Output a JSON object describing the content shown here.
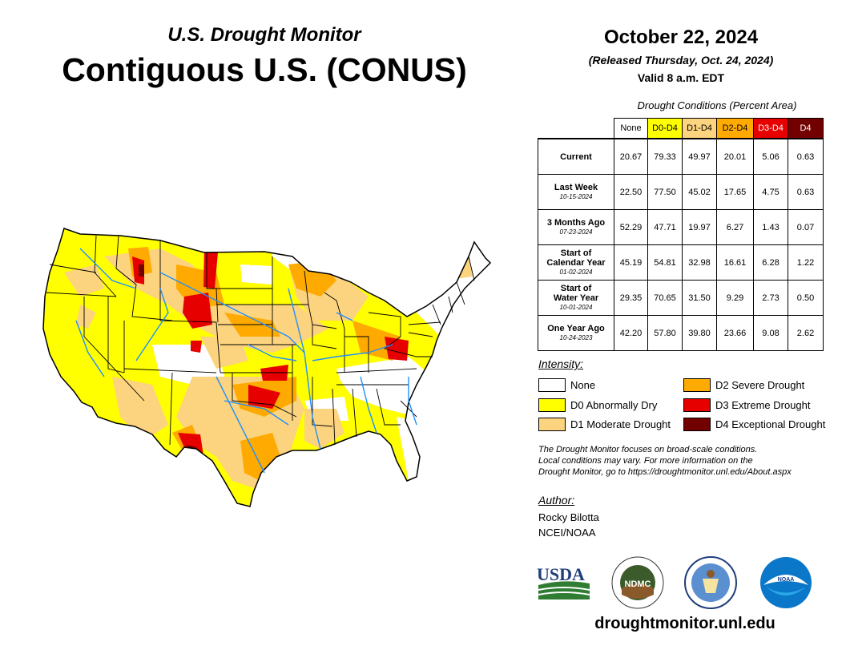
{
  "header": {
    "subtitle": "U.S. Drought Monitor",
    "title": "Contiguous U.S. (CONUS)",
    "date": "October 22, 2024",
    "released": "(Released Thursday, Oct. 24, 2024)",
    "valid": "Valid 8 a.m. EDT"
  },
  "table": {
    "caption": "Drought Conditions (Percent Area)",
    "columns": [
      {
        "label": "None",
        "color": "#ffffff",
        "text_color": "#000000"
      },
      {
        "label": "D0-D4",
        "color": "#ffff00",
        "text_color": "#000000"
      },
      {
        "label": "D1-D4",
        "color": "#fcd37f",
        "text_color": "#000000"
      },
      {
        "label": "D2-D4",
        "color": "#ffaa00",
        "text_color": "#000000"
      },
      {
        "label": "D3-D4",
        "color": "#e60000",
        "text_color": "#ffffff"
      },
      {
        "label": "D4",
        "color": "#730000",
        "text_color": "#ffffff"
      }
    ],
    "rows": [
      {
        "label": "Current",
        "label2": "",
        "date": "",
        "values": [
          "20.67",
          "79.33",
          "49.97",
          "20.01",
          "5.06",
          "0.63"
        ]
      },
      {
        "label": "Last Week",
        "label2": "",
        "date": "10-15-2024",
        "values": [
          "22.50",
          "77.50",
          "45.02",
          "17.65",
          "4.75",
          "0.63"
        ]
      },
      {
        "label": "3 Months Ago",
        "label2": "",
        "date": "07-23-2024",
        "values": [
          "52.29",
          "47.71",
          "19.97",
          "6.27",
          "1.43",
          "0.07"
        ]
      },
      {
        "label": "Start of",
        "label2": "Calendar Year",
        "date": "01-02-2024",
        "values": [
          "45.19",
          "54.81",
          "32.98",
          "16.61",
          "6.28",
          "1.22"
        ]
      },
      {
        "label": "Start of",
        "label2": "Water Year",
        "date": "10-01-2024",
        "values": [
          "29.35",
          "70.65",
          "31.50",
          "9.29",
          "2.73",
          "0.50"
        ]
      },
      {
        "label": "One Year Ago",
        "label2": "",
        "date": "10-24-2023",
        "values": [
          "42.20",
          "57.80",
          "39.80",
          "23.66",
          "9.08",
          "2.62"
        ]
      }
    ]
  },
  "legend": {
    "title": "Intensity:",
    "items": [
      {
        "label": "None",
        "color": "#ffffff"
      },
      {
        "label": "D0 Abnormally Dry",
        "color": "#ffff00"
      },
      {
        "label": "D1 Moderate Drought",
        "color": "#fcd37f"
      },
      {
        "label": "D2 Severe Drought",
        "color": "#ffaa00"
      },
      {
        "label": "D3 Extreme Drought",
        "color": "#e60000"
      },
      {
        "label": "D4 Exceptional Drought",
        "color": "#730000"
      }
    ]
  },
  "note": {
    "line1": "The Drought Monitor focuses on broad-scale conditions.",
    "line2": "Local conditions may vary. For more information on the",
    "line3": "Drought Monitor, go to https://droughtmonitor.unl.edu/About.aspx"
  },
  "author": {
    "title": "Author:",
    "name": "Rocky Bilotta",
    "org": "NCEI/NOAA"
  },
  "logos": {
    "usda": "USDA",
    "ndmc": "NDMC",
    "noaa": "NOAA"
  },
  "website": "droughtmonitor.unl.edu",
  "map": {
    "colors": {
      "none": "#ffffff",
      "d0": "#ffff00",
      "d1": "#fcd37f",
      "d2": "#ffaa00",
      "d3": "#e60000",
      "d4": "#730000",
      "rivers": "#1e90ff",
      "borders": "#000000"
    }
  }
}
